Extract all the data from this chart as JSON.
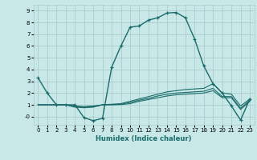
{
  "xlabel": "Humidex (Indice chaleur)",
  "bg_color": "#c8e8e8",
  "grid_color": "#aacccc",
  "line_color": "#1a6b6b",
  "xlim": [
    -0.5,
    23.5
  ],
  "ylim": [
    -0.7,
    9.5
  ],
  "xticks": [
    0,
    1,
    2,
    3,
    4,
    5,
    6,
    7,
    8,
    9,
    10,
    11,
    12,
    13,
    14,
    15,
    16,
    17,
    18,
    19,
    20,
    21,
    22,
    23
  ],
  "yticks": [
    0,
    1,
    2,
    3,
    4,
    5,
    6,
    7,
    8,
    9
  ],
  "ytick_labels": [
    "-0",
    "1",
    "2",
    "3",
    "4",
    "5",
    "6",
    "7",
    "8",
    "9"
  ],
  "series": [
    {
      "x": [
        0,
        1,
        2,
        3,
        4,
        5,
        6,
        7,
        8,
        9,
        10,
        11,
        12,
        13,
        14,
        15,
        16,
        17,
        18,
        19,
        20,
        21,
        22,
        23
      ],
      "y": [
        3.3,
        2.0,
        1.0,
        1.0,
        1.0,
        -0.1,
        -0.35,
        -0.15,
        4.2,
        6.0,
        7.6,
        7.7,
        8.2,
        8.4,
        8.8,
        8.85,
        8.4,
        6.6,
        4.3,
        2.8,
        2.0,
        0.9,
        -0.3,
        1.5
      ],
      "marker": true,
      "linewidth": 1.0
    },
    {
      "x": [
        0,
        1,
        2,
        3,
        4,
        5,
        6,
        7,
        8,
        9,
        10,
        11,
        12,
        13,
        14,
        15,
        16,
        17,
        18,
        19,
        20,
        21,
        22,
        23
      ],
      "y": [
        1.0,
        1.0,
        1.0,
        1.0,
        0.9,
        0.85,
        0.9,
        1.0,
        1.05,
        1.1,
        1.3,
        1.5,
        1.7,
        1.9,
        2.1,
        2.2,
        2.3,
        2.35,
        2.4,
        2.8,
        2.0,
        1.9,
        0.9,
        1.5
      ],
      "marker": false,
      "linewidth": 0.8
    },
    {
      "x": [
        0,
        1,
        2,
        3,
        4,
        5,
        6,
        7,
        8,
        9,
        10,
        11,
        12,
        13,
        14,
        15,
        16,
        17,
        18,
        19,
        20,
        21,
        22,
        23
      ],
      "y": [
        1.0,
        1.0,
        1.0,
        1.0,
        0.85,
        0.8,
        0.85,
        1.0,
        1.02,
        1.05,
        1.2,
        1.4,
        1.55,
        1.75,
        1.9,
        2.0,
        2.05,
        2.1,
        2.15,
        2.4,
        1.7,
        1.7,
        0.7,
        1.4
      ],
      "marker": false,
      "linewidth": 0.8
    },
    {
      "x": [
        0,
        1,
        2,
        3,
        4,
        5,
        6,
        7,
        8,
        9,
        10,
        11,
        12,
        13,
        14,
        15,
        16,
        17,
        18,
        19,
        20,
        21,
        22,
        23
      ],
      "y": [
        1.0,
        1.0,
        1.0,
        1.0,
        0.8,
        0.75,
        0.8,
        1.0,
        1.0,
        1.02,
        1.1,
        1.3,
        1.45,
        1.6,
        1.75,
        1.85,
        1.9,
        1.95,
        2.0,
        2.2,
        1.6,
        1.6,
        0.6,
        1.3
      ],
      "marker": false,
      "linewidth": 0.8
    }
  ]
}
